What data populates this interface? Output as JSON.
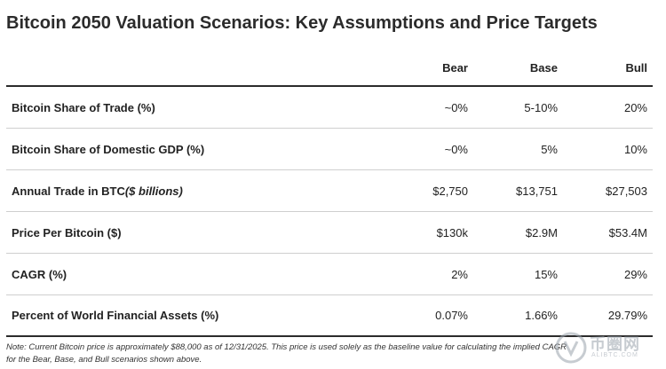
{
  "title": "Bitcoin 2050 Valuation Scenarios: Key Assumptions and Price Targets",
  "columns": [
    "Bear",
    "Base",
    "Bull"
  ],
  "rows": [
    {
      "label": "Bitcoin Share of Trade (%)",
      "label_italic": "",
      "bear": "~0%",
      "base": "5-10%",
      "bull": "20%"
    },
    {
      "label": "Bitcoin Share of Domestic GDP (%)",
      "label_italic": "",
      "bear": "~0%",
      "base": "5%",
      "bull": "10%"
    },
    {
      "label": "Annual Trade in BTC ",
      "label_italic": "($ billions)",
      "bear": "$2,750",
      "base": "$13,751",
      "bull": "$27,503"
    },
    {
      "label": "Price Per Bitcoin ($)",
      "label_italic": "",
      "bear": "$130k",
      "base": "$2.9M",
      "bull": "$53.4M"
    },
    {
      "label": "CAGR (%)",
      "label_italic": "",
      "bear": "2%",
      "base": "15%",
      "bull": "29%"
    },
    {
      "label": "Percent of World Financial Assets (%)",
      "label_italic": "",
      "bear": "0.07%",
      "base": "1.66%",
      "bull": "29.79%"
    }
  ],
  "note": "Note: Current Bitcoin price is approximately $88,000 as of 12/31/2025. This price is used solely as the baseline value for calculating the implied CAGR for the Bear, Base, and Bull scenarios shown above.",
  "watermark": {
    "text": "币圈网",
    "sub": "ALIBTC.COM"
  }
}
